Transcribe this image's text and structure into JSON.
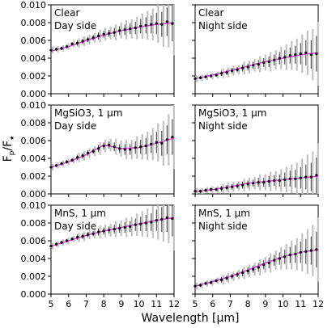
{
  "chart_data": {
    "type": "scatter",
    "layout": "3x2 grid of panels with shared axes",
    "xlabel": "Wavelength [μm]",
    "ylabel_main": "F",
    "ylabel_sub_p": "p",
    "ylabel_sep": "/F",
    "ylabel_sub_star": "★",
    "xlim": [
      5,
      12
    ],
    "ylim": [
      0,
      0.01
    ],
    "x_ticks": [
      "5",
      "6",
      "7",
      "8",
      "9",
      "10",
      "11",
      "12"
    ],
    "y_ticks": [
      "0.000",
      "0.002",
      "0.004",
      "0.006",
      "0.008",
      "0.010"
    ],
    "colors": {
      "points": "#000000",
      "errorbars_dark": "#333333",
      "errorbars_light": "#bdbdbd",
      "model_line": "#e040e0"
    },
    "panels": [
      {
        "label_line1": "Clear",
        "label_line2": "Day side",
        "model": {
          "x": [
            5,
            6,
            7,
            8,
            9,
            10,
            11,
            12
          ],
          "y": [
            0.0048,
            0.0053,
            0.006,
            0.0066,
            0.0071,
            0.0075,
            0.0078,
            0.008
          ]
        },
        "points": {
          "x": [
            5.0,
            5.3,
            5.6,
            5.9,
            6.2,
            6.5,
            6.8,
            7.1,
            7.4,
            7.7,
            8.0,
            8.3,
            8.6,
            8.9,
            9.2,
            9.5,
            9.8,
            10.1,
            10.4,
            10.7,
            11.0,
            11.3,
            11.6,
            11.9
          ],
          "y": [
            0.0049,
            0.005,
            0.0051,
            0.0053,
            0.0056,
            0.0057,
            0.0059,
            0.0061,
            0.0063,
            0.0065,
            0.0067,
            0.0068,
            0.0069,
            0.0071,
            0.0072,
            0.0073,
            0.0074,
            0.0076,
            0.0077,
            0.0078,
            0.0079,
            0.0078,
            0.0081,
            0.0079
          ],
          "err": [
            0.0002,
            0.0002,
            0.0002,
            0.0002,
            0.0002,
            0.0003,
            0.0003,
            0.0003,
            0.0003,
            0.0004,
            0.0004,
            0.0004,
            0.0005,
            0.0005,
            0.0006,
            0.0006,
            0.0007,
            0.0008,
            0.0009,
            0.001,
            0.0012,
            0.0014,
            0.0016,
            0.002
          ]
        }
      },
      {
        "label_line1": "Clear",
        "label_line2": "Night side",
        "model": {
          "x": [
            5,
            6,
            7,
            8,
            9,
            10,
            11,
            12
          ],
          "y": [
            0.0017,
            0.0021,
            0.0026,
            0.0031,
            0.0036,
            0.004,
            0.0044,
            0.0046
          ]
        },
        "points": {
          "x": [
            5.0,
            5.3,
            5.6,
            5.9,
            6.2,
            6.5,
            6.8,
            7.1,
            7.4,
            7.7,
            8.0,
            8.3,
            8.6,
            8.9,
            9.2,
            9.5,
            9.8,
            10.1,
            10.4,
            10.7,
            11.0,
            11.3,
            11.6,
            11.9
          ],
          "y": [
            0.0017,
            0.0018,
            0.0019,
            0.002,
            0.0021,
            0.0023,
            0.0024,
            0.0026,
            0.0027,
            0.0029,
            0.003,
            0.0032,
            0.0033,
            0.0035,
            0.0036,
            0.0038,
            0.004,
            0.0041,
            0.0043,
            0.0044,
            0.0045,
            0.0046,
            0.0044,
            0.0045
          ],
          "err": [
            0.0002,
            0.0002,
            0.0002,
            0.0002,
            0.0002,
            0.0003,
            0.0003,
            0.0003,
            0.0003,
            0.0004,
            0.0004,
            0.0004,
            0.0005,
            0.0005,
            0.0006,
            0.0006,
            0.0007,
            0.0008,
            0.0009,
            0.001,
            0.0012,
            0.0014,
            0.0016,
            0.002
          ]
        }
      },
      {
        "label_line1": "MgSiO3, 1 μm",
        "label_line2": "Day side",
        "model": {
          "x": [
            5,
            6,
            7,
            8,
            9,
            10,
            11,
            12
          ],
          "y": [
            0.003,
            0.0036,
            0.0044,
            0.0055,
            0.0051,
            0.0052,
            0.0057,
            0.0063
          ]
        },
        "points": {
          "x": [
            5.0,
            5.3,
            5.6,
            5.9,
            6.2,
            6.5,
            6.8,
            7.1,
            7.4,
            7.7,
            8.0,
            8.3,
            8.6,
            8.9,
            9.2,
            9.5,
            9.8,
            10.1,
            10.4,
            10.7,
            11.0,
            11.3,
            11.6,
            11.9
          ],
          "y": [
            0.003,
            0.0032,
            0.0034,
            0.0036,
            0.0038,
            0.0041,
            0.0043,
            0.0046,
            0.0048,
            0.0051,
            0.0054,
            0.0055,
            0.0053,
            0.0051,
            0.005,
            0.005,
            0.0052,
            0.0053,
            0.0054,
            0.0056,
            0.0058,
            0.0057,
            0.0061,
            0.0064
          ],
          "err": [
            0.0002,
            0.0002,
            0.0002,
            0.0002,
            0.0002,
            0.0003,
            0.0003,
            0.0003,
            0.0003,
            0.0004,
            0.0004,
            0.0004,
            0.0005,
            0.0005,
            0.0006,
            0.0006,
            0.0007,
            0.0008,
            0.0009,
            0.001,
            0.0012,
            0.0014,
            0.0016,
            0.002
          ]
        }
      },
      {
        "label_line1": "MgSiO3, 1 μm",
        "label_line2": "Night side",
        "model": {
          "x": [
            5,
            6,
            7,
            8,
            9,
            10,
            11,
            12
          ],
          "y": [
            0.00025,
            0.0005,
            0.0008,
            0.0012,
            0.0014,
            0.0016,
            0.0018,
            0.002
          ]
        },
        "points": {
          "x": [
            5.0,
            5.3,
            5.6,
            5.9,
            6.2,
            6.5,
            6.8,
            7.1,
            7.4,
            7.7,
            8.0,
            8.3,
            8.6,
            8.9,
            9.2,
            9.5,
            9.8,
            10.1,
            10.4,
            10.7,
            11.0,
            11.3,
            11.6,
            11.9
          ],
          "y": [
            0.0003,
            0.0003,
            0.0004,
            0.0005,
            0.0005,
            0.0006,
            0.0007,
            0.0008,
            0.0009,
            0.001,
            0.0011,
            0.0012,
            0.0013,
            0.0013,
            0.0014,
            0.0015,
            0.0015,
            0.0016,
            0.0017,
            0.0017,
            0.0018,
            0.0019,
            0.0019,
            0.0021
          ],
          "err": [
            0.0002,
            0.0002,
            0.0002,
            0.0002,
            0.0002,
            0.0003,
            0.0003,
            0.0003,
            0.0003,
            0.0004,
            0.0004,
            0.0004,
            0.0005,
            0.0005,
            0.0006,
            0.0006,
            0.0007,
            0.0008,
            0.0009,
            0.001,
            0.0012,
            0.0014,
            0.0016,
            0.002
          ]
        }
      },
      {
        "label_line1": "MnS, 1 μm",
        "label_line2": "Day side",
        "model": {
          "x": [
            5,
            6,
            7,
            8,
            9,
            10,
            11,
            12
          ],
          "y": [
            0.0054,
            0.006,
            0.0066,
            0.0071,
            0.0075,
            0.0079,
            0.0083,
            0.0086
          ]
        },
        "points": {
          "x": [
            5.0,
            5.3,
            5.6,
            5.9,
            6.2,
            6.5,
            6.8,
            7.1,
            7.4,
            7.7,
            8.0,
            8.3,
            8.6,
            8.9,
            9.2,
            9.5,
            9.8,
            10.1,
            10.4,
            10.7,
            11.0,
            11.3,
            11.6,
            11.9
          ],
          "y": [
            0.0054,
            0.0056,
            0.0058,
            0.006,
            0.0062,
            0.0064,
            0.0065,
            0.0067,
            0.0068,
            0.007,
            0.0071,
            0.0072,
            0.0073,
            0.0074,
            0.0075,
            0.0076,
            0.0078,
            0.0079,
            0.008,
            0.0081,
            0.0083,
            0.0084,
            0.0086,
            0.0085
          ],
          "err": [
            0.0002,
            0.0002,
            0.0002,
            0.0002,
            0.0002,
            0.0003,
            0.0003,
            0.0003,
            0.0003,
            0.0004,
            0.0004,
            0.0004,
            0.0005,
            0.0005,
            0.0006,
            0.0006,
            0.0007,
            0.0008,
            0.0009,
            0.001,
            0.0012,
            0.0014,
            0.0016,
            0.002
          ]
        }
      },
      {
        "label_line1": "MnS, 1 μm",
        "label_line2": "Night side",
        "model": {
          "x": [
            5,
            6,
            7,
            8,
            9,
            10,
            11,
            12
          ],
          "y": [
            0.0009,
            0.0014,
            0.002,
            0.0027,
            0.0035,
            0.0042,
            0.0047,
            0.005
          ]
        },
        "points": {
          "x": [
            5.0,
            5.3,
            5.6,
            5.9,
            6.2,
            6.5,
            6.8,
            7.1,
            7.4,
            7.7,
            8.0,
            8.3,
            8.6,
            8.9,
            9.2,
            9.5,
            9.8,
            10.1,
            10.4,
            10.7,
            11.0,
            11.3,
            11.6,
            11.9
          ],
          "y": [
            0.0009,
            0.001,
            0.0012,
            0.0013,
            0.0015,
            0.0016,
            0.0018,
            0.002,
            0.0022,
            0.0024,
            0.0026,
            0.0028,
            0.003,
            0.0033,
            0.0035,
            0.0038,
            0.004,
            0.0042,
            0.0044,
            0.0045,
            0.0047,
            0.0048,
            0.0049,
            0.005
          ],
          "err": [
            0.0002,
            0.0002,
            0.0002,
            0.0002,
            0.0002,
            0.0003,
            0.0003,
            0.0003,
            0.0003,
            0.0004,
            0.0004,
            0.0004,
            0.0005,
            0.0005,
            0.0006,
            0.0006,
            0.0007,
            0.0008,
            0.0009,
            0.001,
            0.0012,
            0.0014,
            0.0016,
            0.002
          ]
        }
      }
    ]
  }
}
